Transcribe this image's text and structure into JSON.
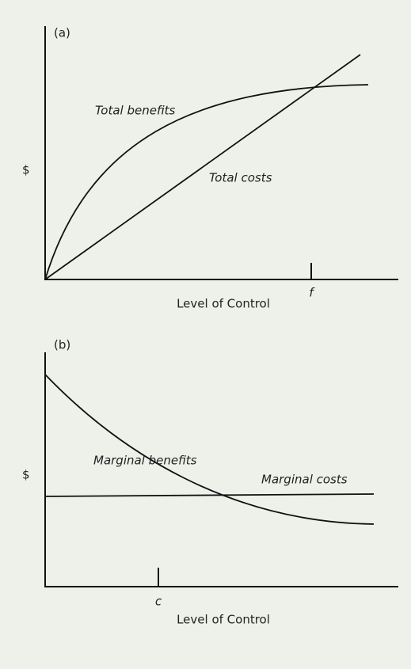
{
  "panels": [
    {
      "label": "(a)",
      "y_label": "$",
      "curves": [
        "Total benefits",
        "Total costs"
      ],
      "tick_label": "f",
      "x_label": "Level of Control"
    },
    {
      "label": "(b)",
      "y_label": "$",
      "curves": [
        "Marginal benefits",
        "Marginal costs"
      ],
      "tick_label": "c",
      "x_label": "Level of Control"
    }
  ]
}
